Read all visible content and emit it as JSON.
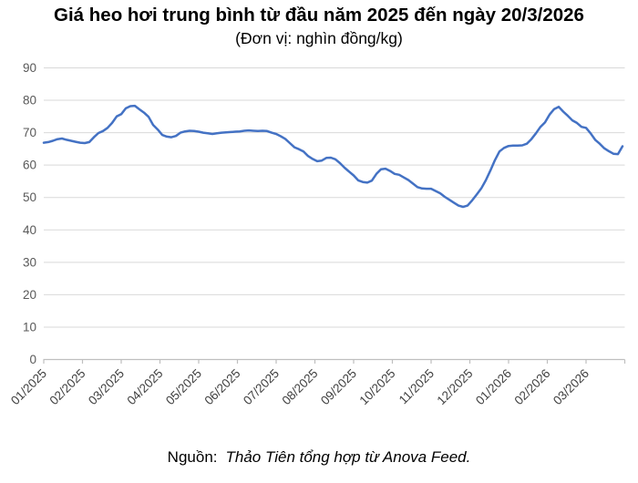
{
  "chart": {
    "title": "Giá heo hơi trung bình từ đầu năm 2025 đến ngày 20/3/2026",
    "subtitle": "(Đơn vị: nghìn đồng/kg)",
    "source_prefix": "Nguồn:",
    "source_text": "Thảo Tiên tổng hợp từ Anova Feed."
  },
  "colors": {
    "line": "#4472C4",
    "gridline": "#D9D9D9",
    "axis": "#BFBFBF",
    "y_tick_label": "#595959",
    "x_tick_label": "#404040"
  },
  "chart_data": {
    "type": "line",
    "title": "Giá heo hơi trung bình từ đầu năm 2025 đến ngày 20/3/2026",
    "subtitle": "(Đơn vị: nghìn đồng/kg)",
    "unit": "nghìn đồng/kg",
    "grid": "horizontal",
    "legend": "none",
    "ylim": [
      0,
      90
    ],
    "ytick_step": 10,
    "x_domain_months": 15,
    "x_tick_labels": [
      "01/2025",
      "02/2025",
      "03/2025",
      "04/2025",
      "05/2025",
      "06/2025",
      "07/2025",
      "08/2025",
      "09/2025",
      "10/2025",
      "11/2025",
      "12/2025",
      "01/2026",
      "02/2026",
      "03/2026"
    ],
    "series": [
      {
        "name": "Giá heo hơi trung bình (nghìn đồng/kg)",
        "color": "#4472C4",
        "x_months_start": 0,
        "x_months_end": 14.94,
        "values": [
          66.9,
          67.1,
          67.5,
          68.0,
          68.2,
          67.8,
          67.5,
          67.2,
          66.9,
          66.8,
          67.1,
          68.6,
          69.9,
          70.5,
          71.5,
          73.0,
          75.0,
          75.7,
          77.5,
          78.2,
          78.3,
          77.2,
          76.2,
          74.9,
          72.4,
          71.0,
          69.3,
          68.8,
          68.6,
          69.0,
          70.0,
          70.4,
          70.6,
          70.5,
          70.3,
          70.0,
          69.8,
          69.6,
          69.8,
          70.0,
          70.1,
          70.2,
          70.3,
          70.4,
          70.6,
          70.7,
          70.6,
          70.5,
          70.6,
          70.5,
          70.0,
          69.6,
          68.9,
          68.1,
          66.8,
          65.5,
          64.9,
          64.2,
          62.8,
          61.9,
          61.2,
          61.4,
          62.2,
          62.3,
          61.8,
          60.6,
          59.2,
          58.0,
          56.8,
          55.3,
          54.8,
          54.6,
          55.2,
          57.3,
          58.7,
          58.9,
          58.2,
          57.3,
          57.0,
          56.2,
          55.4,
          54.3,
          53.2,
          52.8,
          52.7,
          52.7,
          52.0,
          51.3,
          50.2,
          49.3,
          48.4,
          47.5,
          47.1,
          47.5,
          49.1,
          50.9,
          52.8,
          55.3,
          58.3,
          61.5,
          64.2,
          65.3,
          65.9,
          66.0,
          66.0,
          66.1,
          66.6,
          68.0,
          69.8,
          71.8,
          73.2,
          75.6,
          77.3,
          78.0,
          76.5,
          75.2,
          73.8,
          73.0,
          71.8,
          71.5,
          69.8,
          67.8,
          66.6,
          65.2,
          64.3,
          63.5,
          63.4,
          65.8
        ]
      }
    ]
  }
}
